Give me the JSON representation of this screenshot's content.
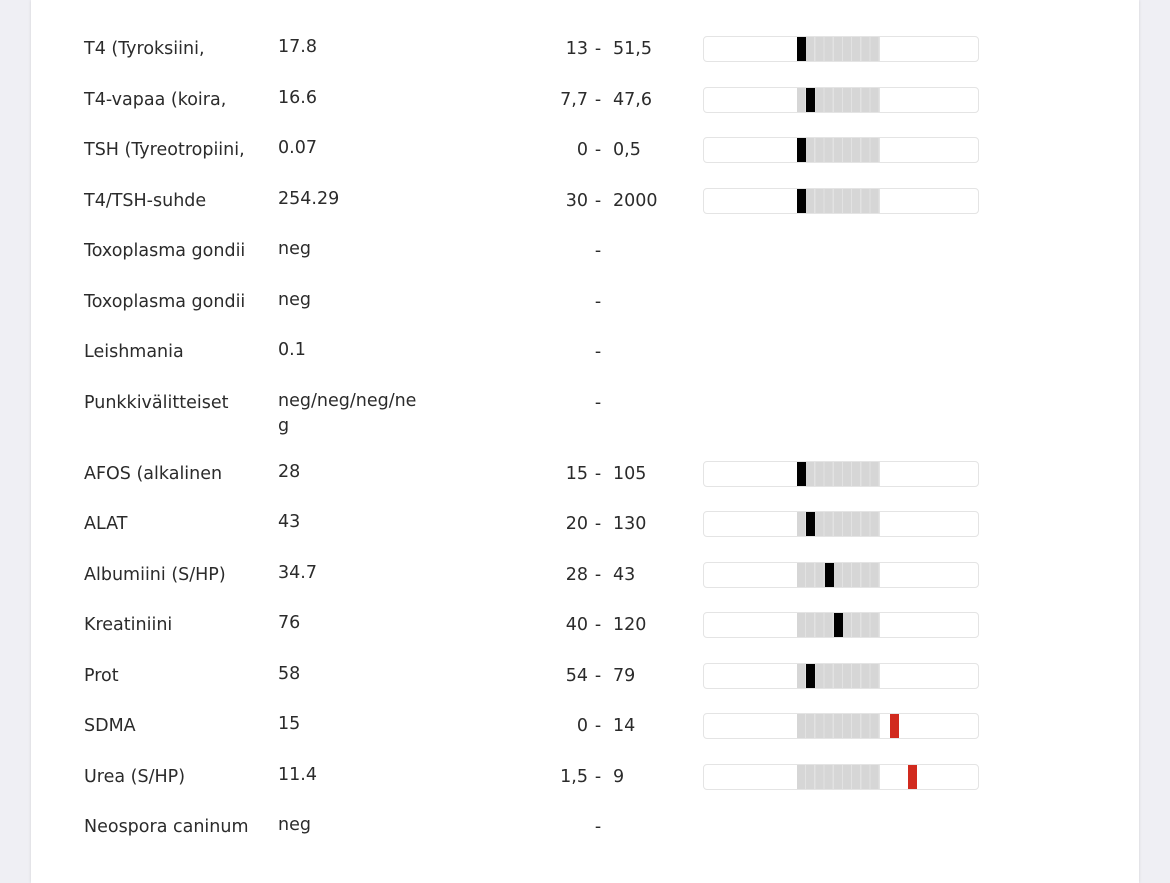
{
  "colors": {
    "normal_marker": "#000000",
    "abnormal_marker": "#d12a1e",
    "range_fill": "#d6d6d6"
  },
  "results": [
    {
      "name": "T4 (Tyroksiini,",
      "value": "17.8",
      "low": "13",
      "high": "51,5",
      "level": 0,
      "abnormal": false
    },
    {
      "name": "T4-vapaa (koira,",
      "value": "16.6",
      "low": "7,7",
      "high": "47,6",
      "level": 1,
      "abnormal": false
    },
    {
      "name": "TSH (Tyreotropiini,",
      "value": "0.07",
      "low": "0",
      "high": "0,5",
      "level": 0,
      "abnormal": false
    },
    {
      "name": "T4/TSH-suhde",
      "value": "254.29",
      "low": "30",
      "high": "2000",
      "level": 0,
      "abnormal": false
    },
    {
      "name": "Toxoplasma gondii",
      "value": "neg",
      "low": "",
      "high": "",
      "level": null
    },
    {
      "name": "Toxoplasma gondii",
      "value": "neg",
      "low": "",
      "high": "",
      "level": null
    },
    {
      "name": "Leishmania",
      "value": "0.1",
      "low": "",
      "high": "",
      "level": null
    },
    {
      "name": "Punkkivälitteiset",
      "value": "neg/neg/neg/neg",
      "low": "",
      "high": "",
      "level": null
    },
    {
      "name": "AFOS (alkalinen",
      "value": "28",
      "low": "15",
      "high": "105",
      "level": 0,
      "abnormal": false
    },
    {
      "name": "ALAT",
      "value": "43",
      "low": "20",
      "high": "130",
      "level": 1,
      "abnormal": false
    },
    {
      "name": "Albumiini (S/HP)",
      "value": "34.7",
      "low": "28",
      "high": "43",
      "level": 3,
      "abnormal": false
    },
    {
      "name": "Kreatiniini",
      "value": "76",
      "low": "40",
      "high": "120",
      "level": 4,
      "abnormal": false
    },
    {
      "name": "Prot",
      "value": "58",
      "low": "54",
      "high": "79",
      "level": 1,
      "abnormal": false
    },
    {
      "name": "SDMA",
      "value": "15",
      "low": "0",
      "high": "14",
      "level": 10.1,
      "abnormal": true
    },
    {
      "name": "Urea (S/HP)",
      "value": "11.4",
      "low": "1,5",
      "high": "9",
      "level": 12.1,
      "abnormal": true
    },
    {
      "name": "Neospora caninum",
      "value": "neg",
      "low": "",
      "high": "",
      "level": null
    }
  ],
  "dash": "-"
}
